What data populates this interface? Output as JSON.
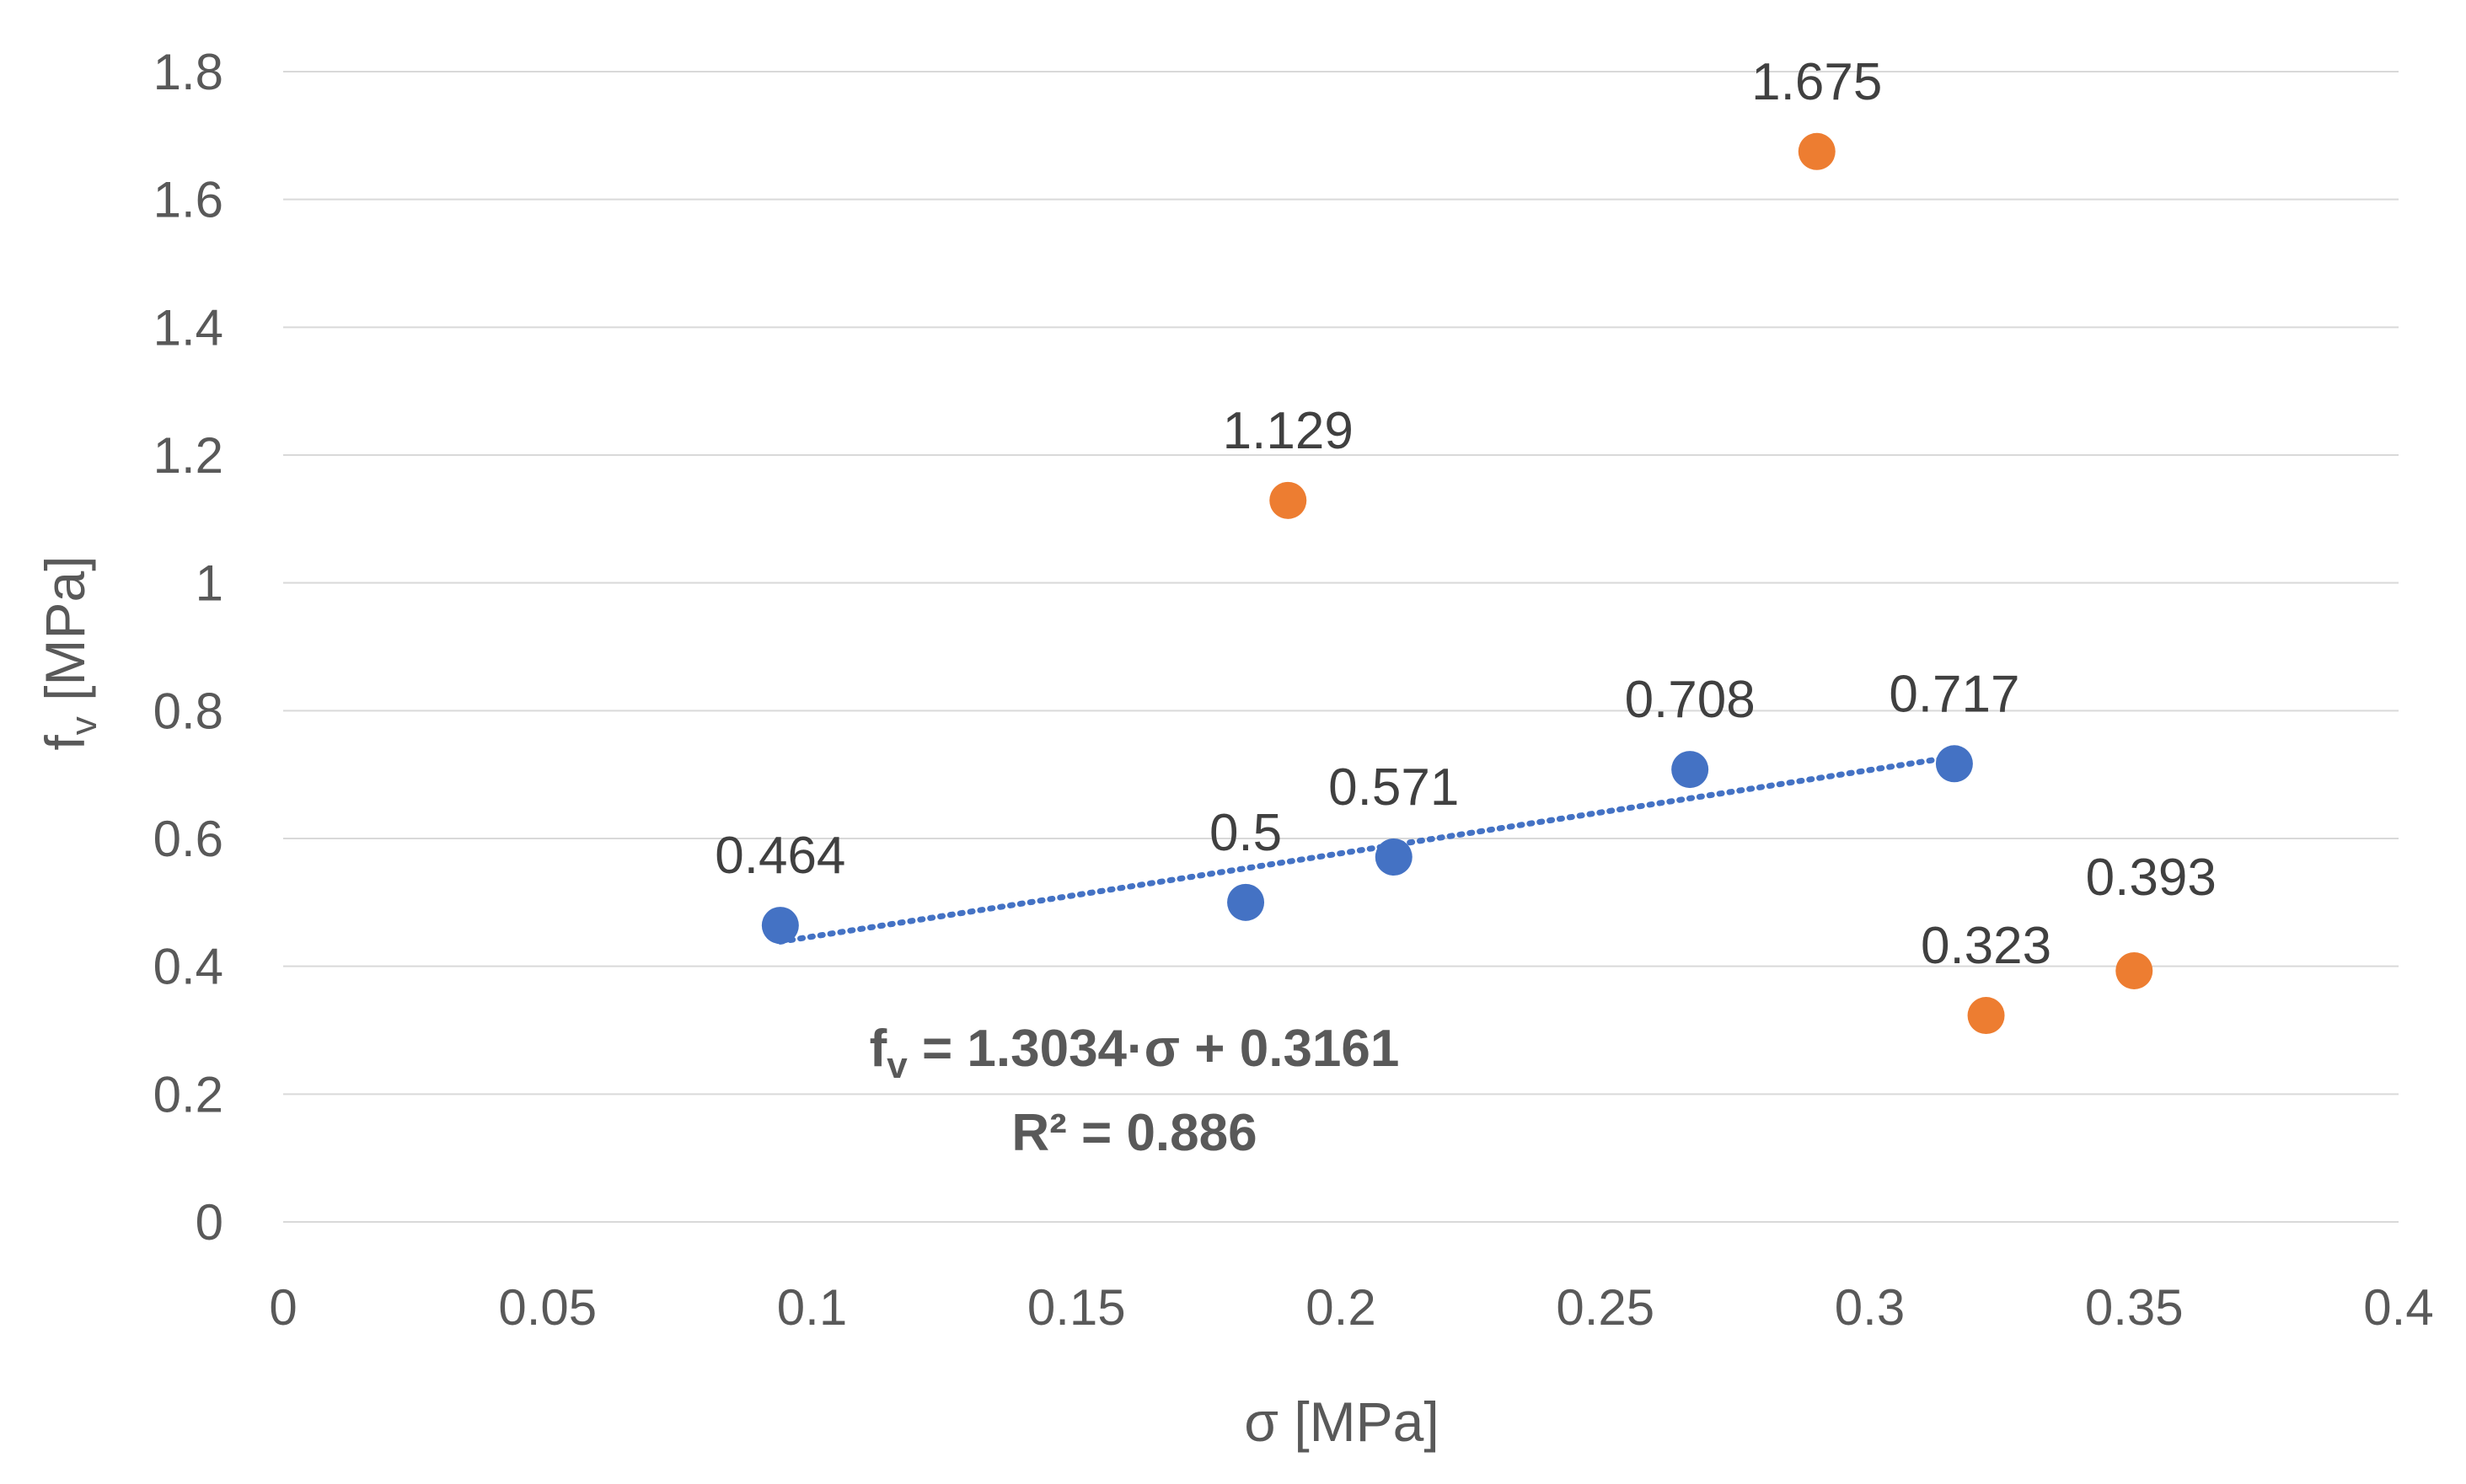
{
  "chart_data": {
    "type": "scatter",
    "title": "",
    "xlabel": "σ [MPa]",
    "ylabel_main": "f",
    "ylabel_sub": "v",
    "ylabel_rest": " [MPa]",
    "xlim": [
      0,
      0.4
    ],
    "ylim": [
      0,
      1.8
    ],
    "xticks": [
      0,
      0.05,
      0.1,
      0.15,
      0.2,
      0.25,
      0.3,
      0.35,
      0.4
    ],
    "xtick_labels": [
      "0",
      "0.05",
      "0.1",
      "0.15",
      "0.2",
      "0.25",
      "0.3",
      "0.35",
      "0.4"
    ],
    "yticks": [
      0,
      0.2,
      0.4,
      0.6,
      0.8,
      1.0,
      1.2,
      1.4,
      1.6,
      1.8
    ],
    "ytick_labels": [
      "0",
      "0.2",
      "0.4",
      "0.6",
      "0.8",
      "1",
      "1.2",
      "1.4",
      "1.6",
      "1.8"
    ],
    "grid": true,
    "series": [
      {
        "name": "series-blue",
        "color": "#4472c4",
        "points": [
          {
            "x": 0.094,
            "y": 0.464,
            "label": "0.464",
            "label_pos": "above"
          },
          {
            "x": 0.182,
            "y": 0.5,
            "label": "0.5",
            "label_pos": "above"
          },
          {
            "x": 0.21,
            "y": 0.571,
            "label": "0.571",
            "label_pos": "above"
          },
          {
            "x": 0.266,
            "y": 0.708,
            "label": "0.708",
            "label_pos": "above"
          },
          {
            "x": 0.316,
            "y": 0.717,
            "label": "0.717",
            "label_pos": "above"
          }
        ]
      },
      {
        "name": "series-orange",
        "color": "#ed7d31",
        "points": [
          {
            "x": 0.19,
            "y": 1.129,
            "label": "1.129",
            "label_pos": "above"
          },
          {
            "x": 0.29,
            "y": 1.675,
            "label": "1.675",
            "label_pos": "above"
          },
          {
            "x": 0.322,
            "y": 0.323,
            "label": "0.323",
            "label_pos": "above"
          },
          {
            "x": 0.35,
            "y": 0.393,
            "label": "0.393",
            "label_pos": "above-right"
          }
        ]
      }
    ],
    "trendline": {
      "series": "series-blue",
      "type": "linear",
      "slope": 1.3034,
      "intercept": 0.3161,
      "x_range": [
        0.094,
        0.316
      ],
      "color": "#4472c4",
      "equation_parts": [
        "f",
        "v",
        " = 1.3034·σ + 0.3161"
      ],
      "r2_text": "R² = 0.886"
    }
  }
}
